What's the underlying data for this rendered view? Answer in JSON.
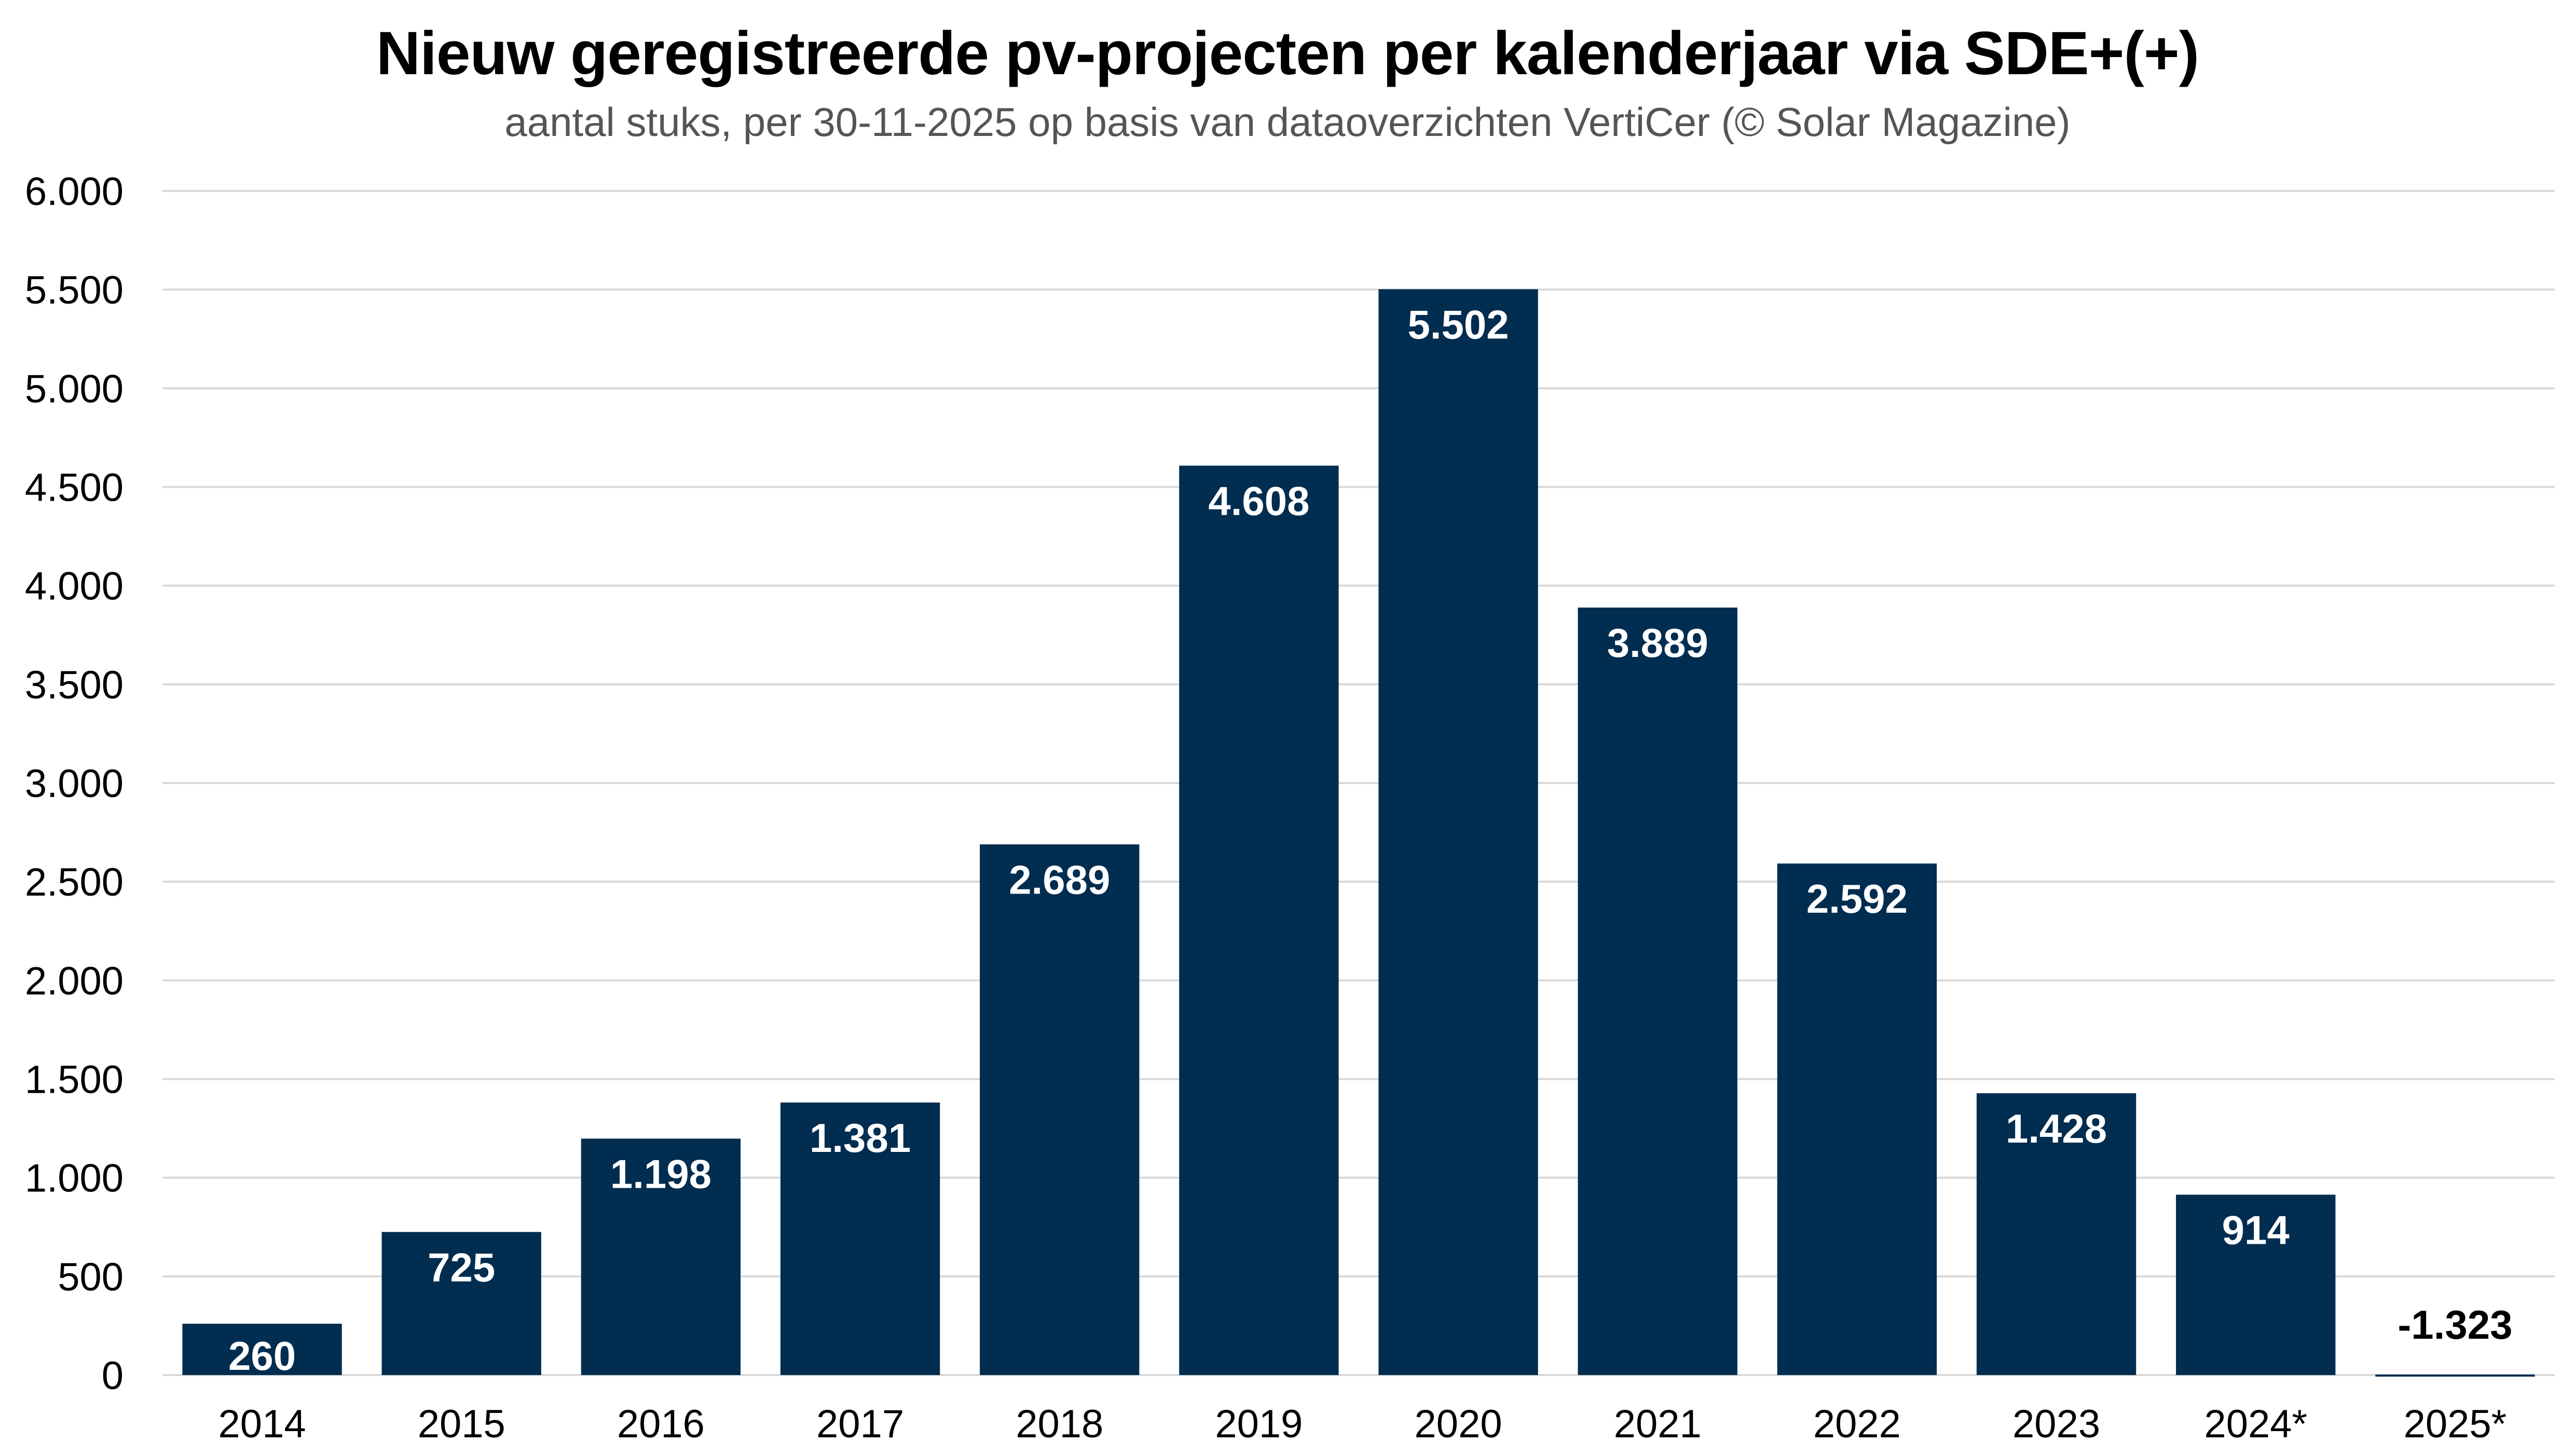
{
  "chart_data": {
    "type": "bar",
    "title": "Nieuw geregistreerde pv-projecten per kalenderjaar via SDE+(+)",
    "subtitle": "aantal stuks, per 30-11-2025 op basis van dataoverzichten VertiCer (© Solar Magazine)",
    "xlabel": "",
    "ylabel": "",
    "categories": [
      "2014",
      "2015",
      "2016",
      "2017",
      "2018",
      "2019",
      "2020",
      "2021",
      "2022",
      "2023",
      "2024*",
      "2025*"
    ],
    "values": [
      260,
      725,
      1198,
      1381,
      2689,
      4608,
      5502,
      3889,
      2592,
      1428,
      914,
      -1323
    ],
    "value_labels": [
      "260",
      "725",
      "1.198",
      "1.381",
      "2.689",
      "4.608",
      "5.502",
      "3.889",
      "2.592",
      "1.428",
      "914",
      "-1.323"
    ],
    "ylim": [
      0,
      6000
    ],
    "yticks": [
      0,
      500,
      1000,
      1500,
      2000,
      2500,
      3000,
      3500,
      4000,
      4500,
      5000,
      5500,
      6000
    ],
    "ytick_labels": [
      "0",
      "500",
      "1.000",
      "1.500",
      "2.000",
      "2.500",
      "3.000",
      "3.500",
      "4.000",
      "4.500",
      "5.000",
      "5.500",
      "6.000"
    ],
    "grid": true,
    "legend": "none",
    "colors": {
      "bar": "#002d50",
      "bar_label_inside": "#ffffff",
      "bar_label_outside": "#000000",
      "grid": "#d9d9d9"
    }
  }
}
